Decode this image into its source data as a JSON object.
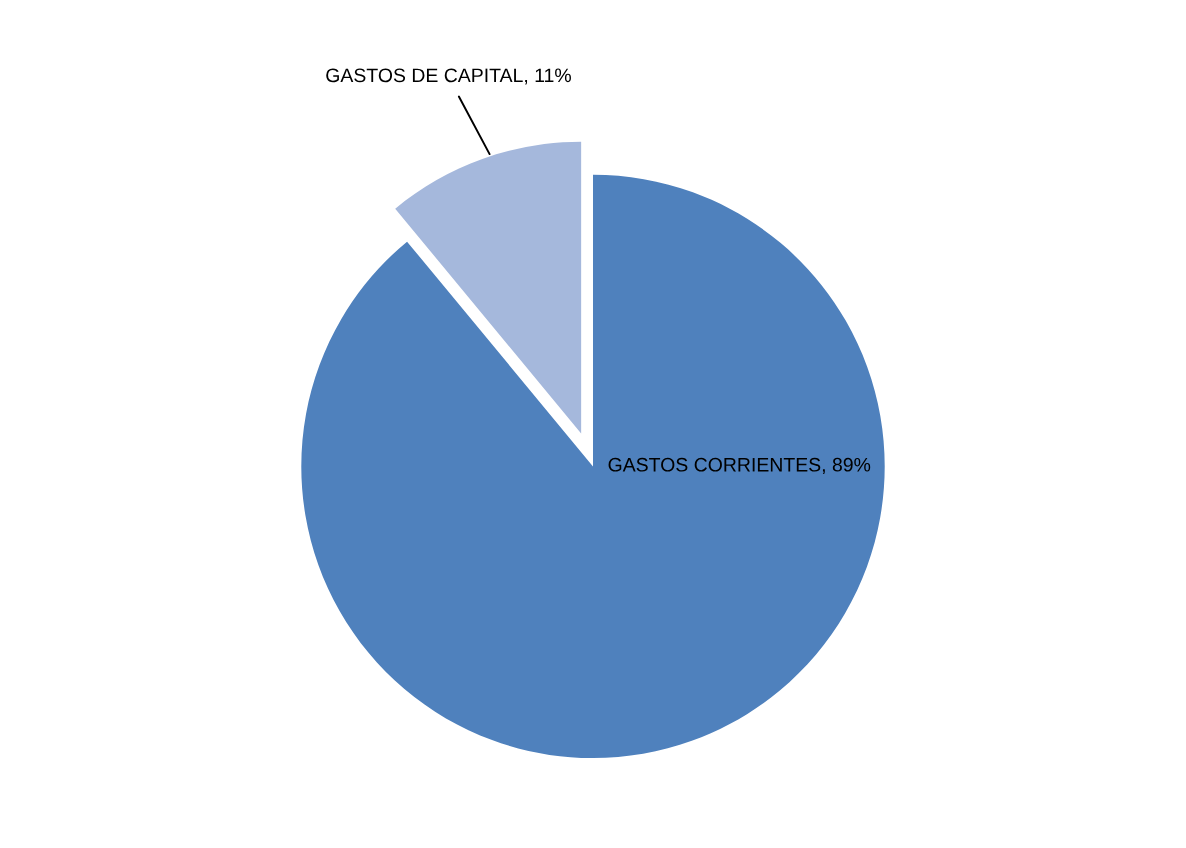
{
  "chart_data": {
    "type": "pie",
    "categories": [
      "GASTOS CORRIENTES",
      "GASTOS DE CAPITAL"
    ],
    "values": [
      89,
      11
    ],
    "value_labels": [
      "89%",
      "11%"
    ],
    "colors": [
      "#4f81bd",
      "#a5b8dc"
    ]
  }
}
